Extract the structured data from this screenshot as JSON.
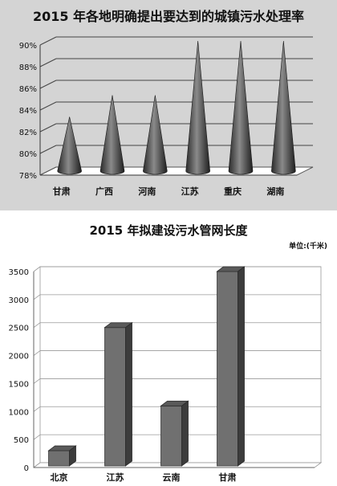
{
  "chart_data": [
    {
      "type": "bar",
      "title": "2015 年各地明确提出要达到的城镇污水处理率",
      "categories": [
        "甘肃",
        "广西",
        "河南",
        "江苏",
        "重庆",
        "湖南"
      ],
      "values": [
        83,
        85,
        85,
        90,
        90,
        90
      ],
      "unit": "%",
      "ylim": [
        78,
        90
      ],
      "yticks": [
        "78%",
        "80%",
        "82%",
        "84%",
        "86%",
        "88%",
        "90%"
      ],
      "grid": true,
      "bar_shape": "cone",
      "colors": {
        "background": "#d4d4d4",
        "bar": "#4a4a4a"
      }
    },
    {
      "type": "bar",
      "title": "2015 年拟建设污水管网长度",
      "unit_label": "单位:(千米)",
      "categories": [
        "北京",
        "江苏",
        "云南",
        "甘肃"
      ],
      "values": [
        300,
        2500,
        1100,
        3500
      ],
      "ylim": [
        0,
        3500
      ],
      "yticks": [
        "0",
        "500",
        "1000",
        "1500",
        "2000",
        "2500",
        "3000",
        "3500"
      ],
      "grid": true,
      "bar_shape": "3d-box",
      "colors": {
        "background": "#ffffff",
        "bar": "#6e6e6e"
      }
    }
  ]
}
